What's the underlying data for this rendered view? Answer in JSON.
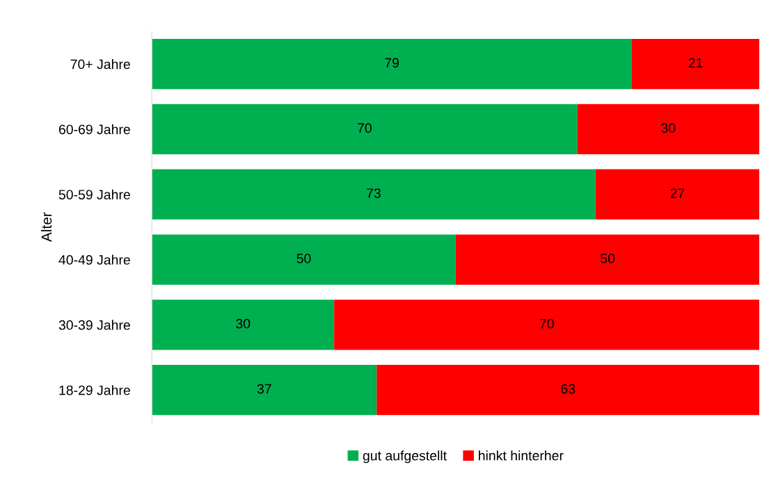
{
  "chart_data": {
    "type": "bar",
    "orientation": "horizontal",
    "stacked": true,
    "ylabel": "Alter",
    "categories": [
      "70+ Jahre",
      "60-69 Jahre",
      "50-59 Jahre",
      "40-49 Jahre",
      "30-39 Jahre",
      "18-29 Jahre"
    ],
    "series": [
      {
        "name": "gut aufgestellt",
        "color": "#00b050",
        "values": [
          79,
          70,
          73,
          50,
          30,
          37
        ]
      },
      {
        "name": "hinkt hinterher",
        "color": "#ff0000",
        "values": [
          21,
          30,
          27,
          50,
          70,
          63
        ]
      }
    ],
    "data_labels": true,
    "legend": "bottom",
    "grid": false
  }
}
